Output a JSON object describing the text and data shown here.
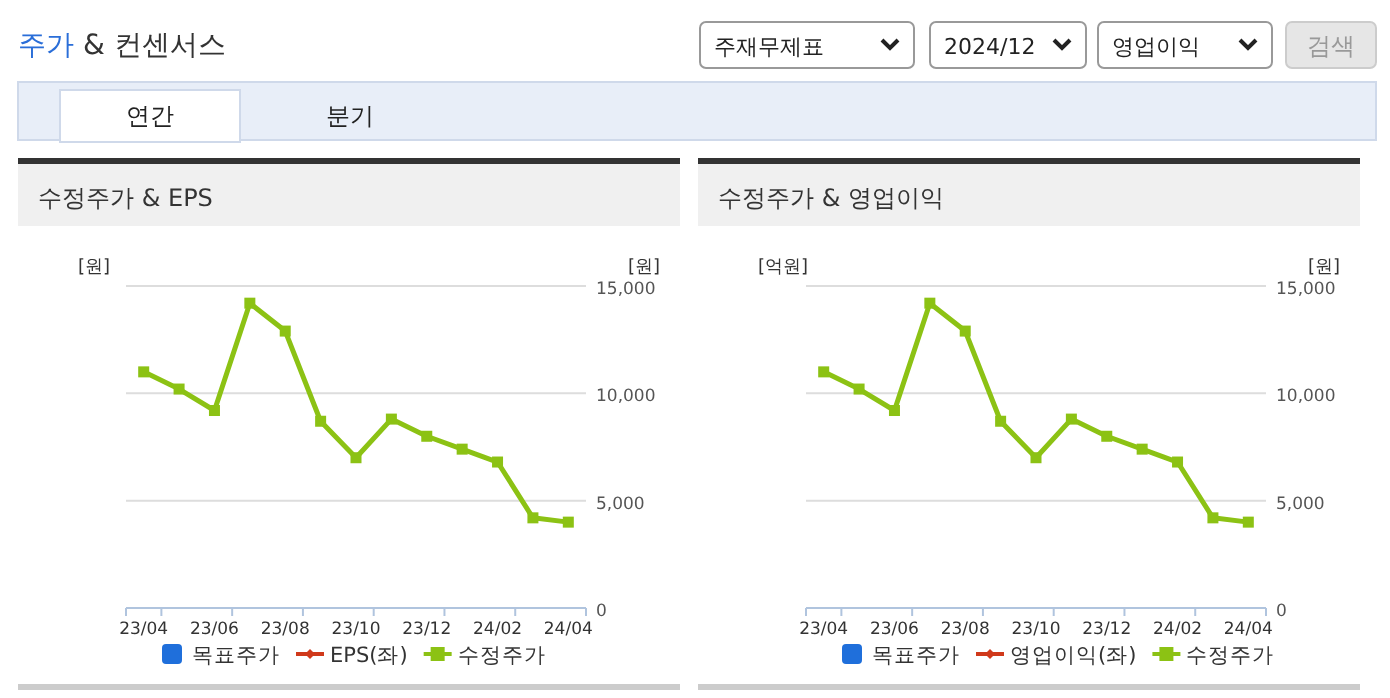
{
  "chart_data": [
    {
      "type": "other",
      "title": "주가 & 컨센서스",
      "annotations": [
        "주재무제표",
        "2024/12",
        "영업이익",
        "검색",
        "연간",
        "분기"
      ]
    },
    {
      "type": "line",
      "title": "수정주가 & EPS",
      "ylabel": "[원]",
      "y2label": "[원]",
      "categories": [
        "23/04",
        null,
        "23/06",
        null,
        "23/08",
        null,
        "23/10",
        null,
        "23/12",
        null,
        "24/02",
        null,
        "24/04"
      ],
      "y2lim": [
        0,
        15000
      ],
      "y2ticks": [
        0,
        {
          "value": 5000,
          "label": "5,000"
        },
        {
          "value": 10000,
          "label": "10,000"
        },
        {
          "value": 15000,
          "label": "15,000"
        }
      ],
      "grid": true,
      "legend": "bottom",
      "series": [
        {
          "name": "목표주가",
          "type": "bar",
          "color": "#1f6fdb",
          "values": [
            null,
            null,
            null,
            null,
            null,
            null,
            null,
            null,
            null,
            null,
            null,
            null,
            null
          ]
        },
        {
          "name": "EPS(좌)",
          "type": "line",
          "marker": "diamond",
          "color": "#d0391b",
          "values": [
            null,
            null,
            null,
            null,
            null,
            null,
            null,
            null,
            null,
            null,
            null,
            null,
            null
          ]
        },
        {
          "name": "수정주가",
          "type": "line",
          "marker": "square",
          "axis": "y2",
          "color": "#8cc214",
          "values": [
            11000,
            10200,
            9200,
            14200,
            12900,
            8700,
            7000,
            8800,
            8000,
            7400,
            6800,
            4200,
            4000
          ]
        }
      ]
    },
    {
      "type": "line",
      "title": "수정주가 & 영업이익",
      "ylabel": "[억원]",
      "y2label": "[원]",
      "categories": [
        "23/04",
        null,
        "23/06",
        null,
        "23/08",
        null,
        "23/10",
        null,
        "23/12",
        null,
        "24/02",
        null,
        "24/04"
      ],
      "y2lim": [
        0,
        15000
      ],
      "y2ticks": [
        0,
        {
          "value": 5000,
          "label": "5,000"
        },
        {
          "value": 10000,
          "label": "10,000"
        },
        {
          "value": 15000,
          "label": "15,000"
        }
      ],
      "grid": true,
      "legend": "bottom",
      "series": [
        {
          "name": "목표주가",
          "type": "bar",
          "color": "#1f6fdb",
          "values": [
            null,
            null,
            null,
            null,
            null,
            null,
            null,
            null,
            null,
            null,
            null,
            null,
            null
          ]
        },
        {
          "name": "영업이익(좌)",
          "type": "line",
          "marker": "diamond",
          "color": "#d0391b",
          "values": [
            null,
            null,
            null,
            null,
            null,
            null,
            null,
            null,
            null,
            null,
            null,
            null,
            null
          ]
        },
        {
          "name": "수정주가",
          "type": "line",
          "marker": "square",
          "axis": "y2",
          "color": "#8cc214",
          "values": [
            11000,
            10200,
            9200,
            14200,
            12900,
            8700,
            7000,
            8800,
            8000,
            7400,
            6800,
            4200,
            4000
          ]
        }
      ]
    }
  ]
}
